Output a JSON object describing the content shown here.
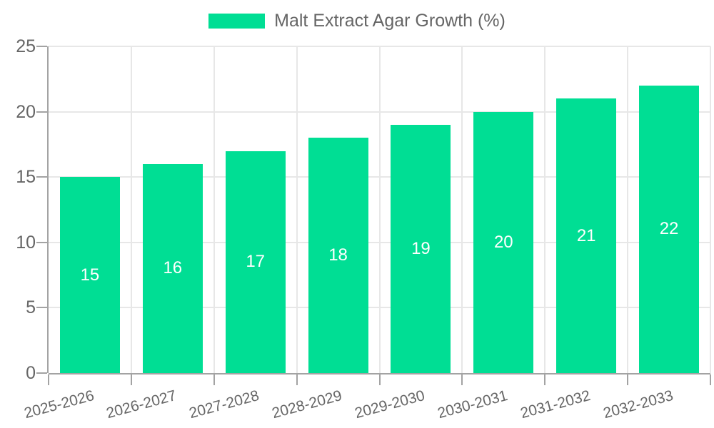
{
  "legend": {
    "label": "Malt Extract Agar Growth (%)",
    "swatch_color": "#00DE94"
  },
  "chart_data": {
    "type": "bar",
    "title": "Malt Extract Agar Growth (%)",
    "categories": [
      "2025-2026",
      "2026-2027",
      "2027-2028",
      "2028-2029",
      "2029-2030",
      "2030-2031",
      "2031-2032",
      "2032-2033"
    ],
    "series": [
      {
        "name": "Malt Extract Agar Growth (%)",
        "values": [
          15,
          16,
          17,
          18,
          19,
          20,
          21,
          22
        ]
      }
    ],
    "value_labels": [
      "15",
      "16",
      "17",
      "18",
      "19",
      "20",
      "21",
      "22"
    ],
    "xlabel": "",
    "ylabel": "",
    "ylim": [
      0,
      25
    ],
    "yticks": [
      0,
      5,
      10,
      15,
      20,
      25
    ],
    "grid": true,
    "legend_position": "top"
  },
  "colors": {
    "bar": "#00DE94",
    "grid": "#e7e7e7",
    "axis": "#a3a3a3",
    "tick_label": "#666666",
    "legend_text": "#666666",
    "value_label": "#ffffff",
    "background": "#ffffff"
  }
}
